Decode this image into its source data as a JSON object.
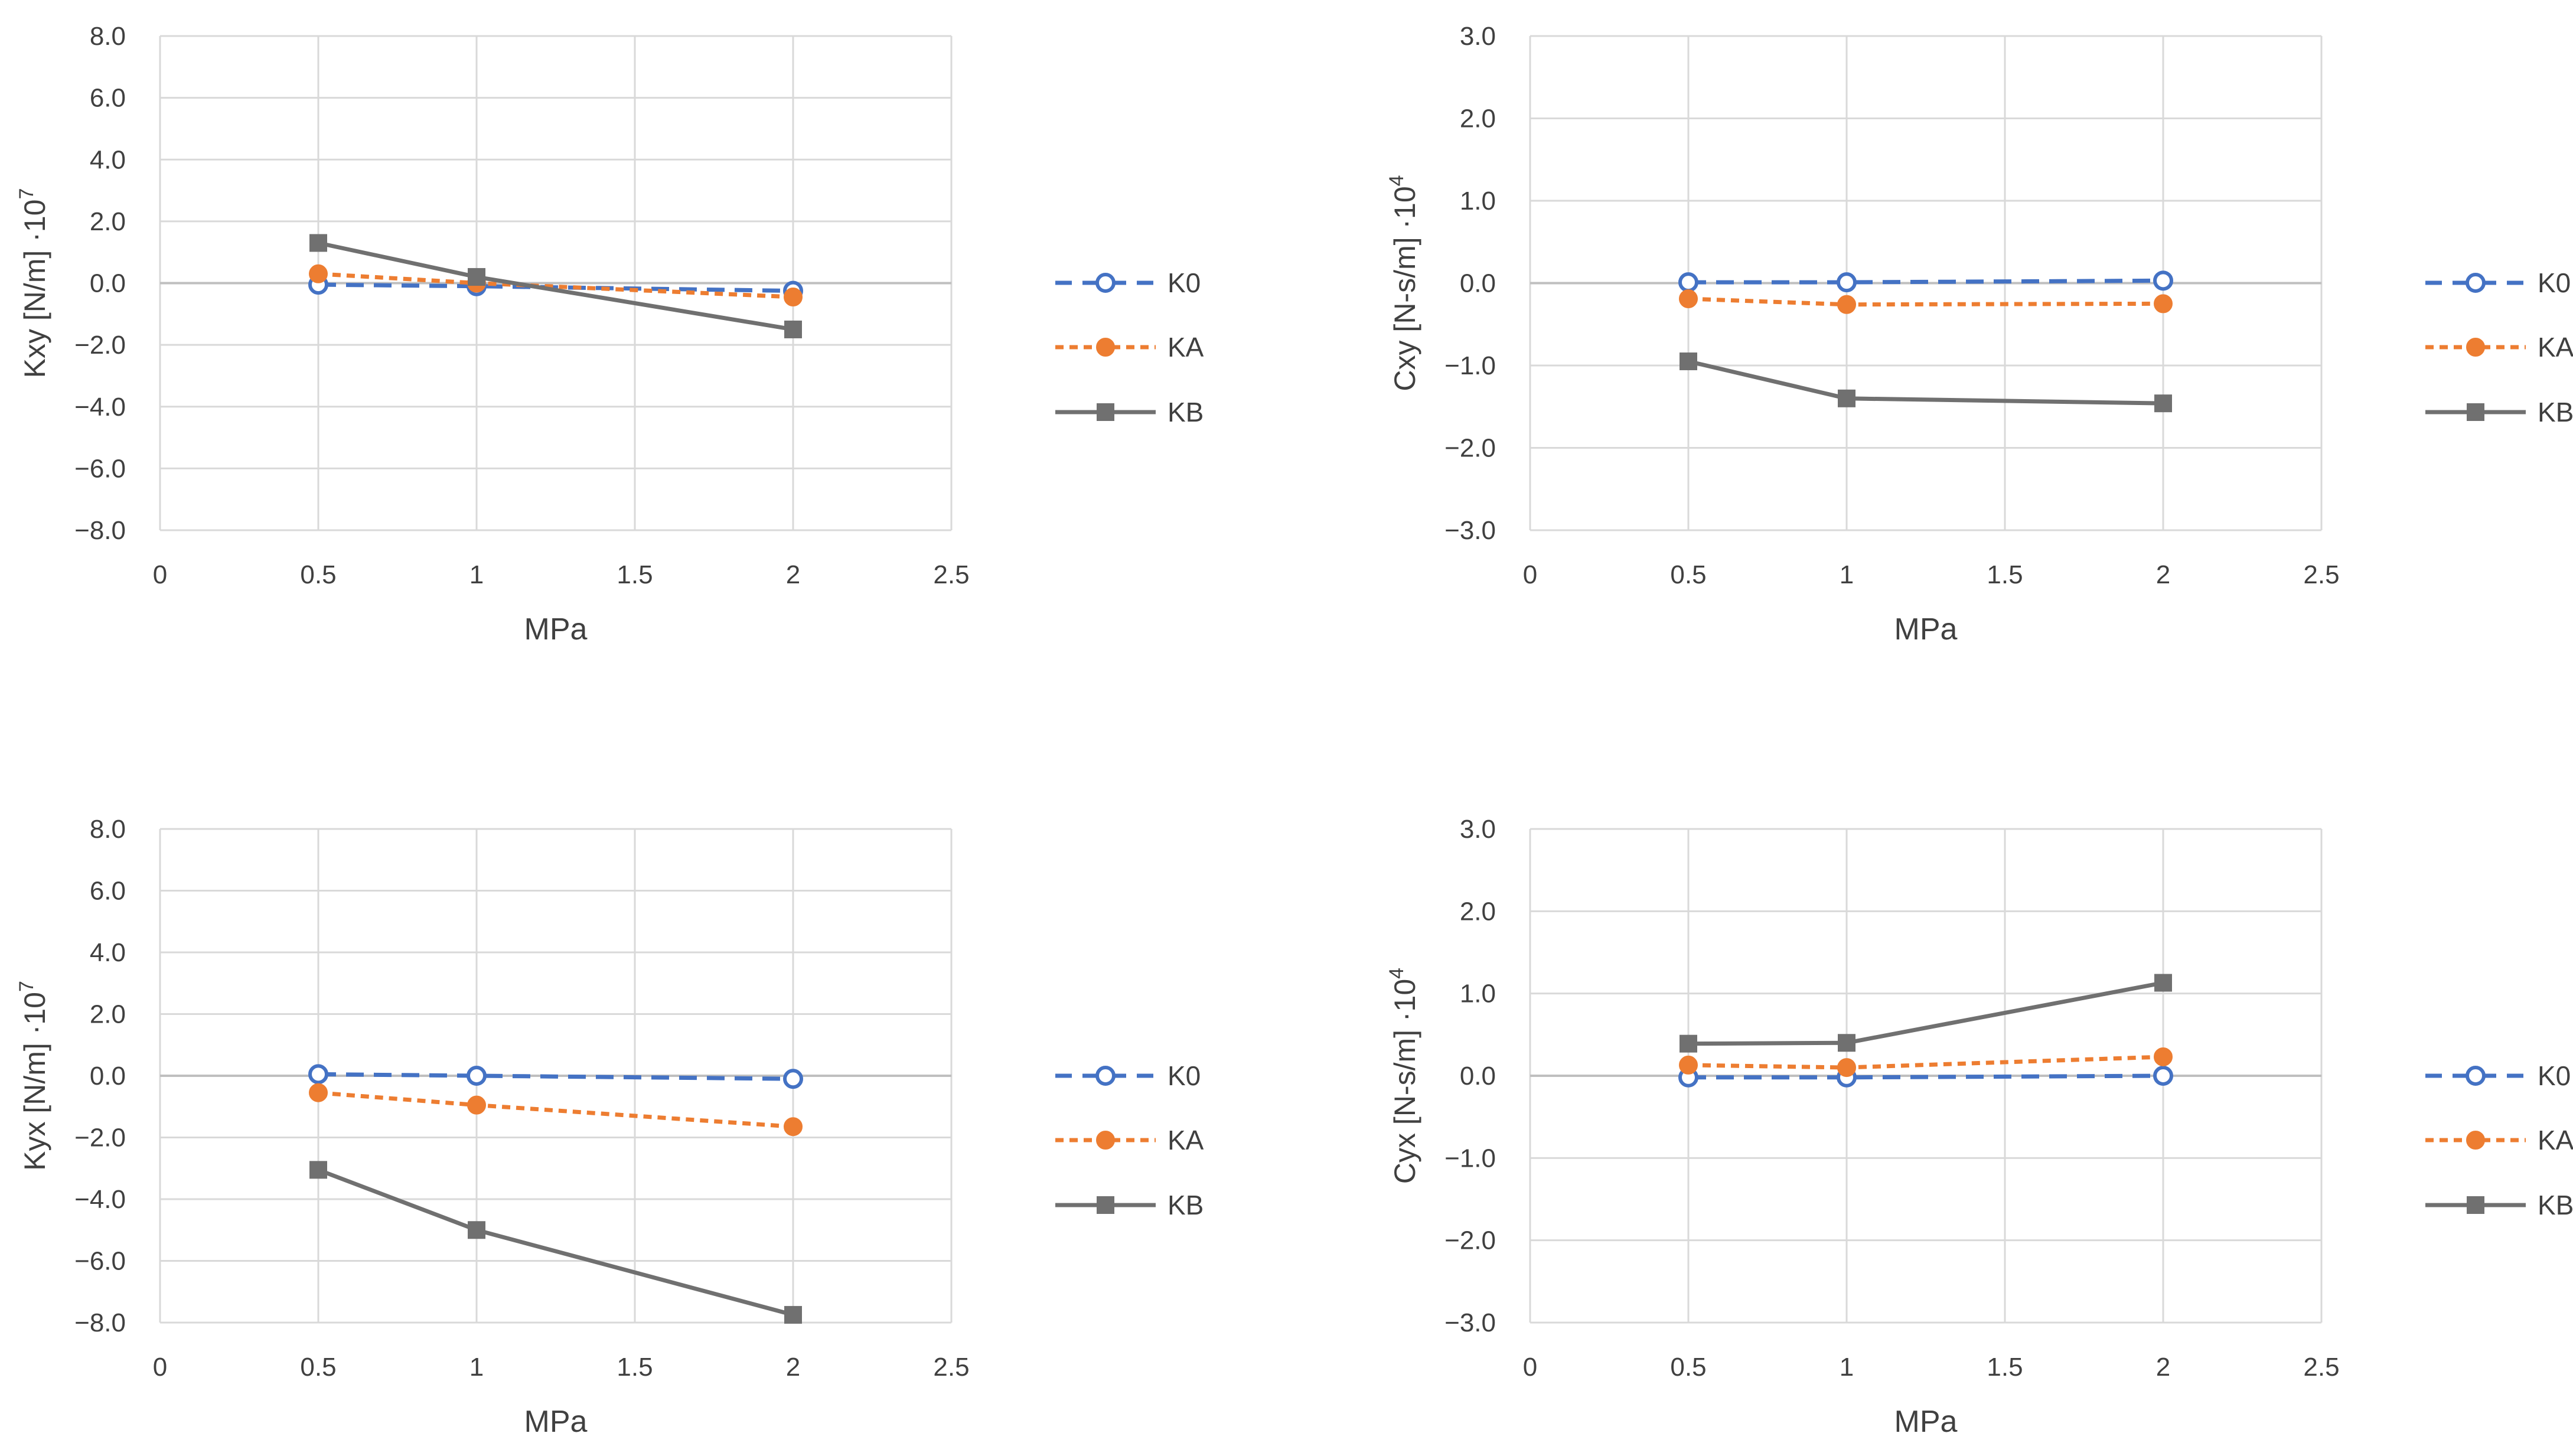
{
  "colors": {
    "K0": "#4472C4",
    "KA": "#ED7D31",
    "KB": "#707070",
    "grid": "#D9D9D9",
    "axis": "#BFBFBF",
    "text": "#404040"
  },
  "chart_data": [
    {
      "type": "line",
      "title": "",
      "xlabel": "MPa",
      "ylabel": "Kxy [N/m] ·10",
      "ylabel_exp": "7",
      "xlim": [
        0,
        2.5
      ],
      "ylim": [
        -8,
        8
      ],
      "x_ticks": [
        "0",
        "0.5",
        "1",
        "1.5",
        "2",
        "2.5"
      ],
      "y_ticks": [
        "8.0",
        "6.0",
        "4.0",
        "2.0",
        "0.0",
        "−2.0",
        "−4.0",
        "−6.0",
        "−8.0"
      ],
      "x": [
        0.5,
        1,
        2
      ],
      "series": [
        {
          "name": "K0",
          "values": [
            -0.05,
            -0.1,
            -0.25
          ]
        },
        {
          "name": "KA",
          "values": [
            0.3,
            0.0,
            -0.45
          ]
        },
        {
          "name": "KB",
          "values": [
            1.3,
            0.2,
            -1.5
          ]
        }
      ],
      "legend": "right"
    },
    {
      "type": "line",
      "title": "",
      "xlabel": "MPa",
      "ylabel": "Cxy [N-s/m] ·10",
      "ylabel_exp": "4",
      "xlim": [
        0,
        2.5
      ],
      "ylim": [
        -3,
        3
      ],
      "x_ticks": [
        "0",
        "0.5",
        "1",
        "1.5",
        "2",
        "2.5"
      ],
      "y_ticks": [
        "3.0",
        "2.0",
        "1.0",
        "0.0",
        "−1.0",
        "−2.0",
        "−3.0"
      ],
      "x": [
        0.5,
        1,
        2
      ],
      "series": [
        {
          "name": "K0",
          "values": [
            0.01,
            0.01,
            0.03
          ]
        },
        {
          "name": "KA",
          "values": [
            -0.19,
            -0.26,
            -0.25
          ]
        },
        {
          "name": "KB",
          "values": [
            -0.95,
            -1.4,
            -1.46
          ]
        }
      ],
      "legend": "right"
    },
    {
      "type": "line",
      "title": "",
      "xlabel": "MPa",
      "ylabel": "Kyx [N/m] ·10",
      "ylabel_exp": "7",
      "xlim": [
        0,
        2.5
      ],
      "ylim": [
        -8,
        8
      ],
      "x_ticks": [
        "0",
        "0.5",
        "1",
        "1.5",
        "2",
        "2.5"
      ],
      "y_ticks": [
        "8.0",
        "6.0",
        "4.0",
        "2.0",
        "0.0",
        "−2.0",
        "−4.0",
        "−6.0",
        "−8.0"
      ],
      "x": [
        0.5,
        1,
        2
      ],
      "series": [
        {
          "name": "K0",
          "values": [
            0.05,
            0.0,
            -0.1
          ]
        },
        {
          "name": "KA",
          "values": [
            -0.55,
            -0.95,
            -1.65
          ]
        },
        {
          "name": "KB",
          "values": [
            -3.05,
            -5.0,
            -7.75
          ]
        }
      ],
      "legend": "right"
    },
    {
      "type": "line",
      "title": "",
      "xlabel": "MPa",
      "ylabel": "Cyx [N-s/m] ·10",
      "ylabel_exp": "4",
      "xlim": [
        0,
        2.5
      ],
      "ylim": [
        -3,
        3
      ],
      "x_ticks": [
        "0",
        "0.5",
        "1",
        "1.5",
        "2",
        "2.5"
      ],
      "y_ticks": [
        "3.0",
        "2.0",
        "1.0",
        "0.0",
        "−1.0",
        "−2.0",
        "−3.0"
      ],
      "x": [
        0.5,
        1,
        2
      ],
      "series": [
        {
          "name": "K0",
          "values": [
            -0.02,
            -0.02,
            0.0
          ]
        },
        {
          "name": "KA",
          "values": [
            0.13,
            0.1,
            0.23
          ]
        },
        {
          "name": "KB",
          "values": [
            0.39,
            0.4,
            1.13
          ]
        }
      ],
      "legend": "right"
    }
  ]
}
